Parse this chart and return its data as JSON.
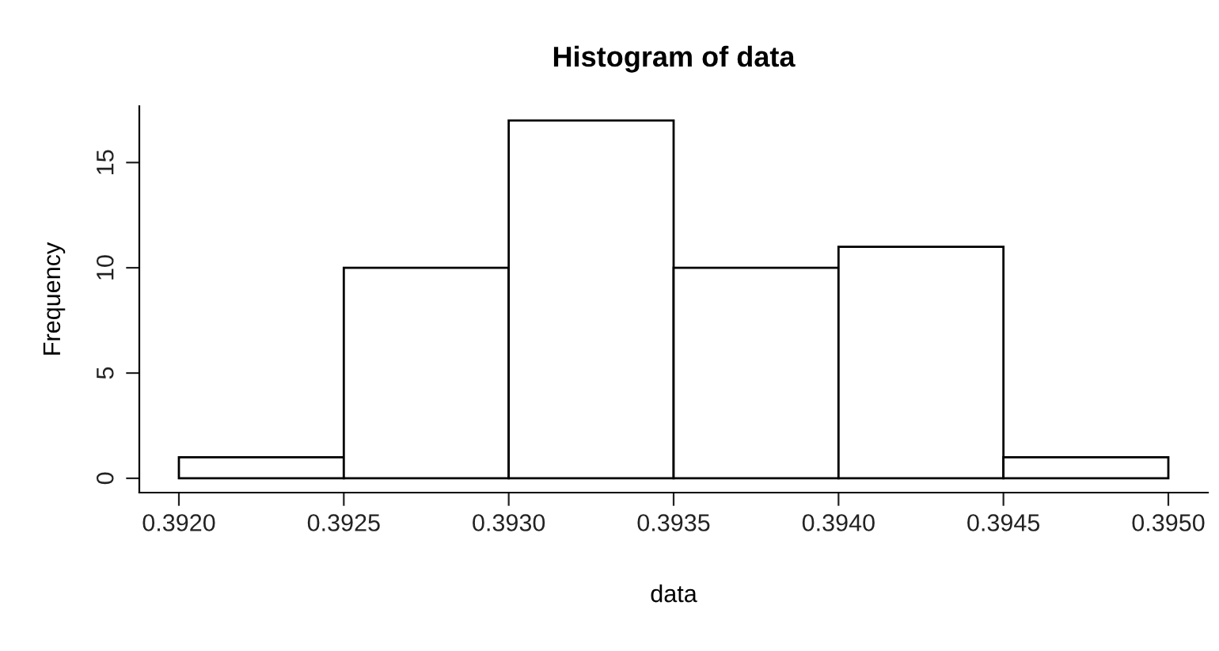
{
  "chart_data": {
    "type": "histogram",
    "title": "Histogram of data",
    "xlabel": "data",
    "ylabel": "Frequency",
    "bins": [
      0.392,
      0.3925,
      0.393,
      0.3935,
      0.394,
      0.3945,
      0.395
    ],
    "values": [
      1,
      10,
      17,
      10,
      11,
      1
    ],
    "color": "#ffffff",
    "xlim": [
      0.39188,
      0.39512
    ],
    "xticks": [
      {
        "value": 0.392,
        "label": "0.3920"
      },
      {
        "value": 0.3925,
        "label": "0.3925"
      },
      {
        "value": 0.393,
        "label": "0.3930"
      },
      {
        "value": 0.3935,
        "label": "0.3935"
      },
      {
        "value": 0.394,
        "label": "0.3940"
      },
      {
        "value": 0.3945,
        "label": "0.3945"
      },
      {
        "value": 0.395,
        "label": "0.3950"
      }
    ],
    "ylim": [
      -0.68,
      17.68
    ],
    "yticks": [
      0,
      5,
      10,
      15
    ],
    "grid": false,
    "legend": false
  }
}
